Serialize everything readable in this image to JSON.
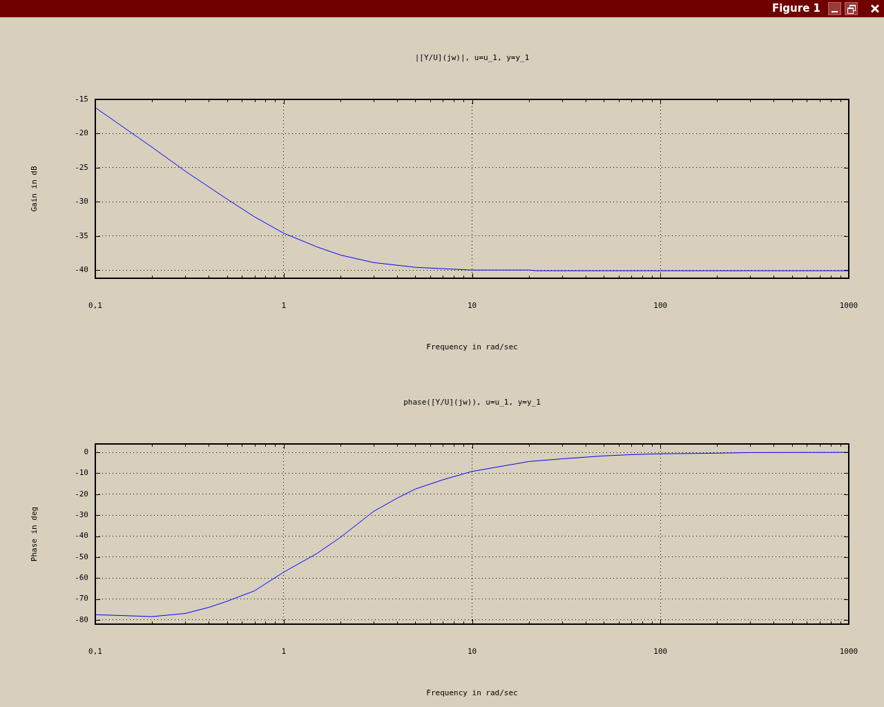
{
  "chart_data": [
    {
      "type": "line",
      "title": "|[Y/U](jw)|, u=u_1, y=y_1",
      "xlabel": "Frequency in rad/sec",
      "ylabel": "Gain in dB",
      "annotations": [
        "Figure 1"
      ],
      "series": [
        {
          "color": "#0000ff",
          "x": [
            0.1,
            0.2,
            0.3,
            0.5,
            0.7,
            1,
            1.5,
            2,
            3,
            5,
            7,
            10,
            20,
            22,
            50,
            100,
            1000
          ],
          "values": [
            -16.2,
            -22.0,
            -25.5,
            -29.6,
            -32.2,
            -34.6,
            -36.6,
            -37.8,
            -38.9,
            -39.6,
            -39.8,
            -40.0,
            -40.0,
            -40.1,
            -40.1,
            -40.1,
            -40.1
          ]
        }
      ],
      "log": "x",
      "grid": true,
      "legend": false,
      "marker": "none",
      "line_style": "solid",
      "xlim": [
        0.1,
        1000
      ],
      "ylim": [
        -41.2,
        -15
      ],
      "xticks": [
        {
          "value": 0.1,
          "label": "0,1"
        },
        {
          "value": 0.2,
          "label": null
        },
        {
          "value": 0.3,
          "label": null
        },
        {
          "value": 0.4,
          "label": null
        },
        {
          "value": 0.5,
          "label": null
        },
        {
          "value": 0.6,
          "label": null
        },
        {
          "value": 0.7,
          "label": null
        },
        {
          "value": 0.8,
          "label": null
        },
        {
          "value": 0.9,
          "label": null
        },
        1,
        {
          "value": 2,
          "label": null
        },
        {
          "value": 3,
          "label": null
        },
        {
          "value": 4,
          "label": null
        },
        {
          "value": 5,
          "label": null
        },
        {
          "value": 6,
          "label": null
        },
        {
          "value": 7,
          "label": null
        },
        {
          "value": 8,
          "label": null
        },
        {
          "value": 9,
          "label": null
        },
        10,
        {
          "value": 20,
          "label": null
        },
        {
          "value": 30,
          "label": null
        },
        {
          "value": 40,
          "label": null
        },
        {
          "value": 50,
          "label": null
        },
        {
          "value": 60,
          "label": null
        },
        {
          "value": 70,
          "label": null
        },
        {
          "value": 80,
          "label": null
        },
        {
          "value": 90,
          "label": null
        },
        100,
        {
          "value": 200,
          "label": null
        },
        {
          "value": 300,
          "label": null
        },
        {
          "value": 400,
          "label": null
        },
        {
          "value": 500,
          "label": null
        },
        {
          "value": 600,
          "label": null
        },
        {
          "value": 700,
          "label": null
        },
        {
          "value": 800,
          "label": null
        },
        {
          "value": 900,
          "label": null
        },
        1000
      ],
      "yticks": [
        -40,
        -35,
        -30,
        -25,
        -20,
        -15
      ]
    },
    {
      "type": "line",
      "title": "phase([Y/U](jw)), u=u_1, y=y_1",
      "xlabel": "Frequency in rad/sec",
      "ylabel": "Phase in deg",
      "series": [
        {
          "color": "#0000ff",
          "x": [
            0.1,
            0.15,
            0.2,
            0.3,
            0.4,
            0.5,
            0.7,
            1,
            1.5,
            2,
            3,
            4,
            5,
            7,
            10,
            20,
            30,
            50,
            70,
            100,
            200,
            300,
            1000
          ],
          "values": [
            -77.5,
            -78.0,
            -78.4,
            -76.9,
            -74.0,
            -71.1,
            -66.1,
            -57.2,
            -48.3,
            -40.6,
            -28.2,
            -21.9,
            -17.5,
            -13.1,
            -9.1,
            -4.4,
            -3.1,
            -1.7,
            -1.1,
            -0.7,
            -0.4,
            -0.1,
            0
          ]
        }
      ],
      "log": "x",
      "grid": true,
      "legend": false,
      "marker": "none",
      "line_style": "solid",
      "xlim": [
        0.1,
        1000
      ],
      "ylim": [
        -82,
        4
      ],
      "xticks": [
        {
          "value": 0.1,
          "label": "0,1"
        },
        {
          "value": 0.2,
          "label": null
        },
        {
          "value": 0.3,
          "label": null
        },
        {
          "value": 0.4,
          "label": null
        },
        {
          "value": 0.5,
          "label": null
        },
        {
          "value": 0.6,
          "label": null
        },
        {
          "value": 0.7,
          "label": null
        },
        {
          "value": 0.8,
          "label": null
        },
        {
          "value": 0.9,
          "label": null
        },
        1,
        {
          "value": 2,
          "label": null
        },
        {
          "value": 3,
          "label": null
        },
        {
          "value": 4,
          "label": null
        },
        {
          "value": 5,
          "label": null
        },
        {
          "value": 6,
          "label": null
        },
        {
          "value": 7,
          "label": null
        },
        {
          "value": 8,
          "label": null
        },
        {
          "value": 9,
          "label": null
        },
        10,
        {
          "value": 20,
          "label": null
        },
        {
          "value": 30,
          "label": null
        },
        {
          "value": 40,
          "label": null
        },
        {
          "value": 50,
          "label": null
        },
        {
          "value": 60,
          "label": null
        },
        {
          "value": 70,
          "label": null
        },
        {
          "value": 80,
          "label": null
        },
        {
          "value": 90,
          "label": null
        },
        100,
        {
          "value": 200,
          "label": null
        },
        {
          "value": 300,
          "label": null
        },
        {
          "value": 400,
          "label": null
        },
        {
          "value": 500,
          "label": null
        },
        {
          "value": 600,
          "label": null
        },
        {
          "value": 700,
          "label": null
        },
        {
          "value": 800,
          "label": null
        },
        {
          "value": 900,
          "label": null
        },
        1000
      ],
      "yticks": [
        -80,
        -70,
        -60,
        -50,
        -40,
        -30,
        -20,
        -10,
        0
      ]
    }
  ]
}
